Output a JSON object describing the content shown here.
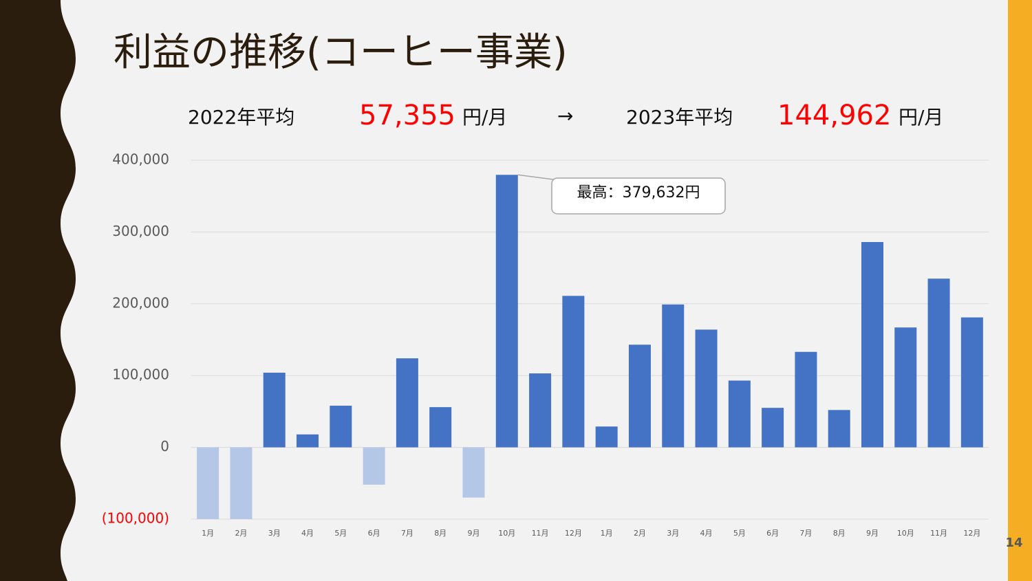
{
  "chart_data": {
    "type": "bar",
    "title": "利益の推移(コーヒー事業)",
    "subtitle": {
      "label_2022": "2022年平均",
      "avg_2022": "57,355",
      "unit_2022": "円/月",
      "arrow": "→",
      "label_2023": "2023年平均",
      "avg_2023": "144,962",
      "unit_2023": "円/月"
    },
    "annotation": "最高：379,632円",
    "page_number": "14",
    "categories": [
      "1月",
      "2月",
      "3月",
      "4月",
      "5月",
      "6月",
      "7月",
      "8月",
      "9月",
      "10月",
      "11月",
      "12月",
      "1月",
      "2月",
      "3月",
      "4月",
      "5月",
      "6月",
      "7月",
      "8月",
      "9月",
      "10月",
      "11月",
      "12月"
    ],
    "values": [
      -100000,
      -100000,
      104000,
      18000,
      58000,
      -52000,
      124000,
      56000,
      -70000,
      379632,
      103000,
      211000,
      29000,
      143000,
      199000,
      164000,
      93000,
      55000,
      133000,
      52000,
      286000,
      167000,
      235000,
      181000
    ],
    "color": "#4472c4",
    "negative_color": "#b4c7e7",
    "ylim": [
      -100000,
      400000
    ],
    "yticks": [
      {
        "value": -100000,
        "label": "(100,000)"
      },
      0,
      {
        "value": 100000,
        "label": "100,000"
      },
      {
        "value": 200000,
        "label": "200,000"
      },
      {
        "value": 300000,
        "label": "300,000"
      },
      {
        "value": 400000,
        "label": "400,000"
      }
    ],
    "negative_tick_color": "#ff0000",
    "grid": true
  }
}
